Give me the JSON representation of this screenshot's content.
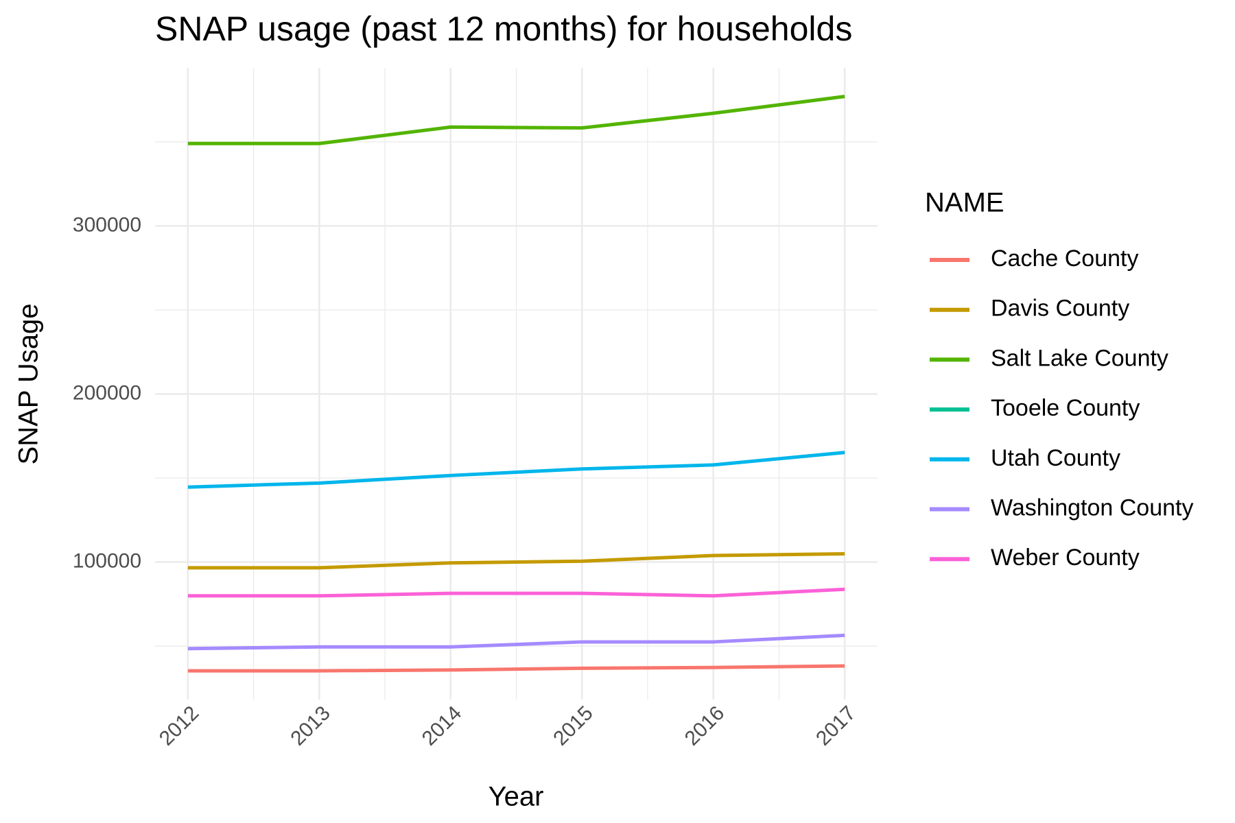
{
  "chart_data": {
    "type": "line",
    "title": "SNAP usage (past 12 months) for households",
    "x_label": "Year",
    "y_label": "SNAP Usage",
    "legend_title": "NAME",
    "x": [
      2012,
      2013,
      2014,
      2015,
      2016,
      2017
    ],
    "series": [
      {
        "name": "Cache County",
        "color": "#F8766D",
        "values": [
          35300,
          35300,
          35800,
          36800,
          37300,
          38200
        ]
      },
      {
        "name": "Davis County",
        "color": "#C49A00",
        "values": [
          96600,
          96600,
          99500,
          100500,
          103900,
          104900
        ]
      },
      {
        "name": "Salt Lake County",
        "color": "#53B400",
        "values": [
          349000,
          349000,
          358800,
          358300,
          367000,
          377000
        ]
      },
      {
        "name": "Tooele County",
        "color": "#00C094",
        "values": [
          null,
          null,
          null,
          null,
          null,
          null
        ]
      },
      {
        "name": "Utah County",
        "color": "#00B6EB",
        "values": [
          144600,
          147000,
          151500,
          155400,
          157800,
          165200
        ]
      },
      {
        "name": "Washington County",
        "color": "#A58AFF",
        "values": [
          48500,
          49500,
          49500,
          52500,
          52500,
          56400
        ]
      },
      {
        "name": "Weber County",
        "color": "#FB61D7",
        "values": [
          79900,
          79900,
          81400,
          81400,
          79900,
          83800
        ]
      }
    ],
    "xlim": [
      2011.75,
      2017.25
    ],
    "xticks": [
      2012,
      2013,
      2014,
      2015,
      2016,
      2017
    ],
    "ylim": [
      18200,
      394000
    ],
    "yticks": [
      100000,
      200000,
      300000
    ],
    "grid": true,
    "legend_position": "right"
  }
}
